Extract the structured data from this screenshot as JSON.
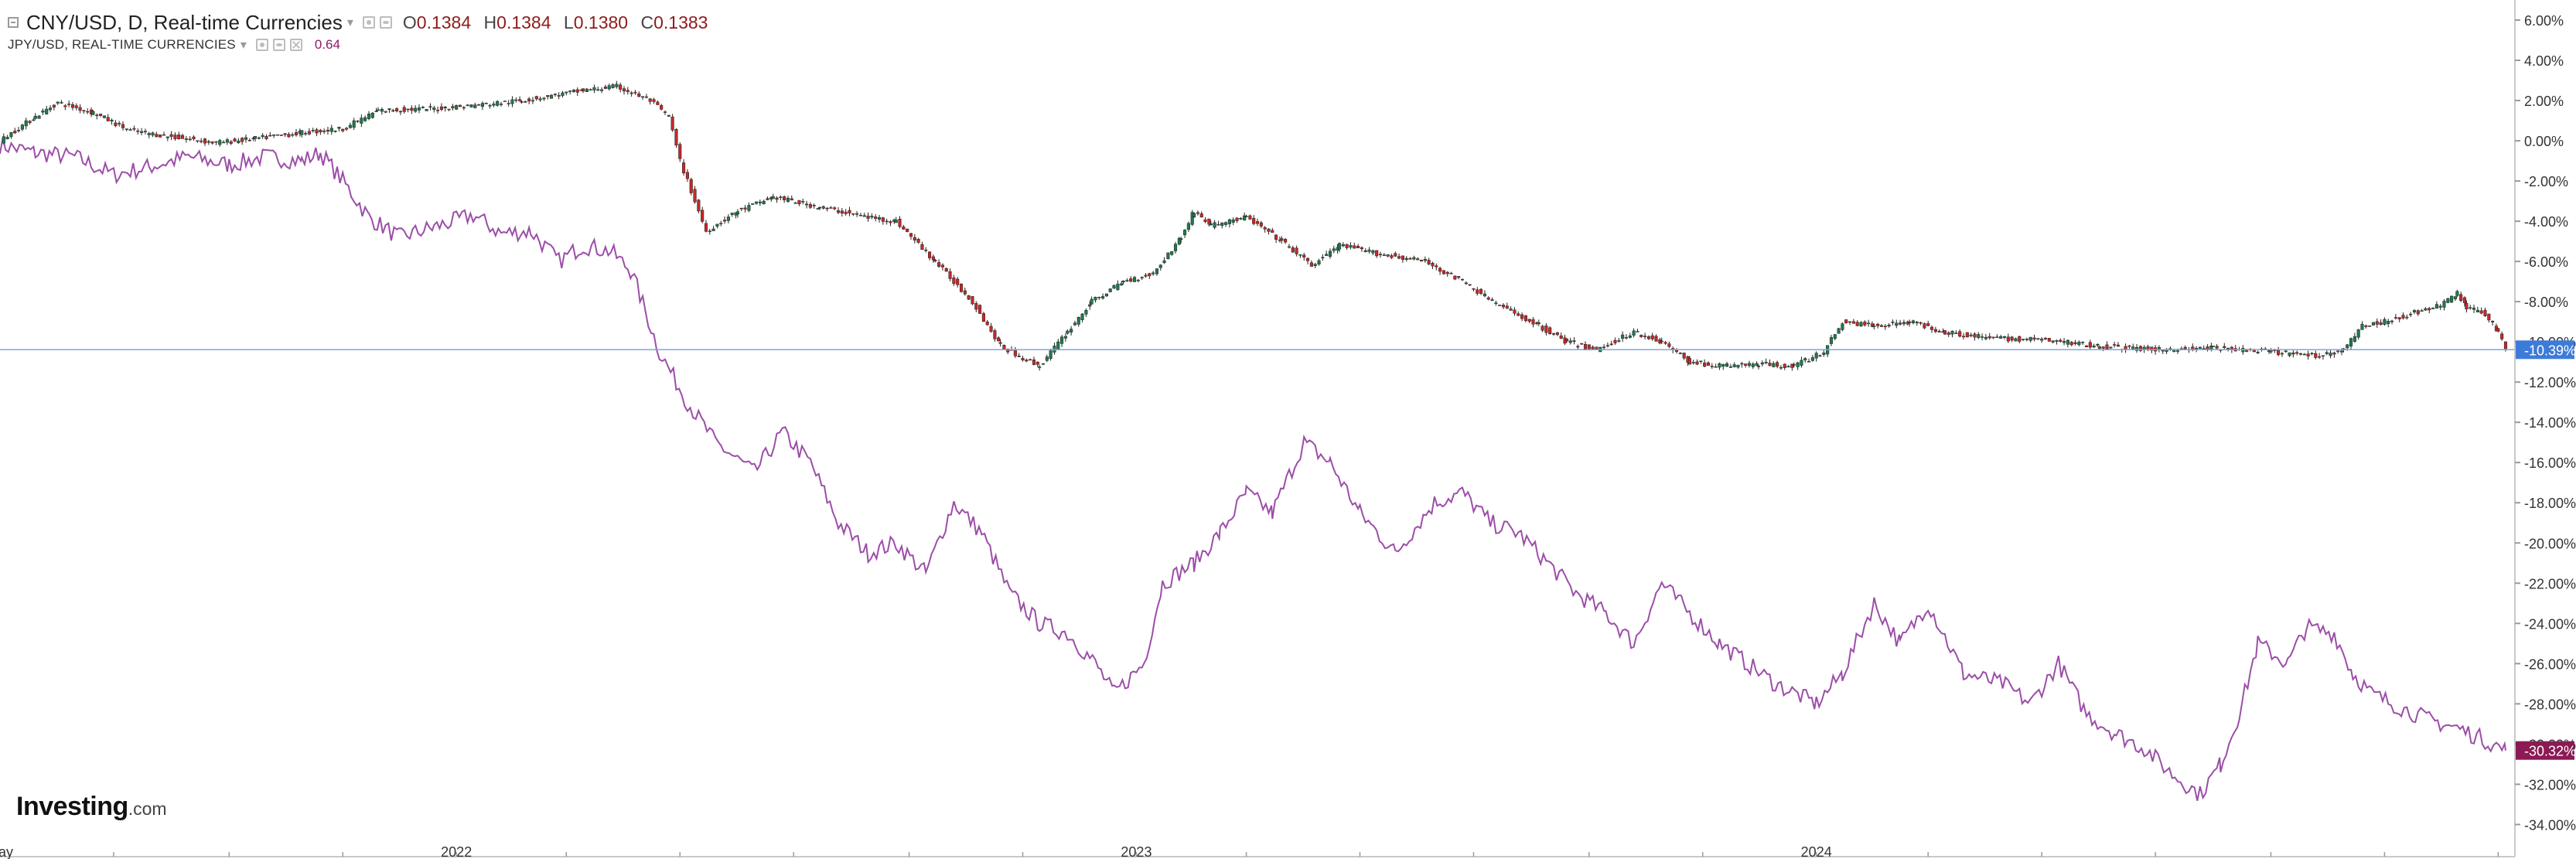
{
  "legend": {
    "main_title": "CNY/USD, D, Real-time Currencies",
    "open_label": "O",
    "open": "0.1384",
    "high_label": "H",
    "high": "0.1384",
    "low_label": "L",
    "low": "0.1380",
    "close_label": "C",
    "close": "0.1383",
    "secondary_title": "JPY/USD, REAL-TIME CURRENCIES",
    "secondary_value": "0.64"
  },
  "logo": {
    "brand": "Investing",
    "suffix": ".com"
  },
  "colors": {
    "up": "#1f7a4d",
    "down": "#c62828",
    "comparison_line": "#9c4ea8",
    "price_line": "#7fa7d6",
    "cny_badge": "#3d7bd8",
    "jpy_badge": "#8c1a54"
  },
  "chart_data": {
    "type": "line",
    "x_tick_labels": [
      "May",
      "2022",
      "2023",
      "2024"
    ],
    "y_tick_labels": [
      "6.00%",
      "4.00%",
      "2.00%",
      "0.00%",
      "-2.00%",
      "-4.00%",
      "-6.00%",
      "-8.00%",
      "-10.00%",
      "-12.00%",
      "-14.00%",
      "-16.00%",
      "-18.00%",
      "-20.00%",
      "-22.00%",
      "-24.00%",
      "-26.00%",
      "-28.00%",
      "-30.00%",
      "-32.00%",
      "-34.00%"
    ],
    "ylim": [
      -35.6,
      7.0
    ],
    "x_range": [
      "2021-05-01",
      "2025-01-05"
    ],
    "series": [
      {
        "name": "CNY/USD",
        "style": "candlestick",
        "last_label": "-10.39%",
        "points": [
          [
            "2021-05-01",
            0.0
          ],
          [
            "2021-05-20",
            1.2
          ],
          [
            "2021-06-01",
            1.9
          ],
          [
            "2021-06-20",
            1.4
          ],
          [
            "2021-07-10",
            0.5
          ],
          [
            "2021-08-01",
            0.2
          ],
          [
            "2021-08-25",
            -0.1
          ],
          [
            "2021-09-15",
            0.1
          ],
          [
            "2021-10-10",
            0.4
          ],
          [
            "2021-11-01",
            0.6
          ],
          [
            "2021-11-20",
            1.5
          ],
          [
            "2021-12-20",
            1.6
          ],
          [
            "2022-01-15",
            1.8
          ],
          [
            "2022-02-05",
            2.0
          ],
          [
            "2022-02-25",
            2.3
          ],
          [
            "2022-03-10",
            2.5
          ],
          [
            "2022-03-28",
            2.7
          ],
          [
            "2022-04-15",
            2.0
          ],
          [
            "2022-04-25",
            1.2
          ],
          [
            "2022-05-01",
            -1.0
          ],
          [
            "2022-05-15",
            -4.5
          ],
          [
            "2022-06-01",
            -3.5
          ],
          [
            "2022-06-20",
            -2.8
          ],
          [
            "2022-07-15",
            -3.3
          ],
          [
            "2022-08-10",
            -3.8
          ],
          [
            "2022-08-25",
            -4.0
          ],
          [
            "2022-09-15",
            -6.0
          ],
          [
            "2022-10-05",
            -8.0
          ],
          [
            "2022-10-20",
            -10.2
          ],
          [
            "2022-11-01",
            -10.8
          ],
          [
            "2022-11-10",
            -11.2
          ],
          [
            "2022-11-25",
            -9.5
          ],
          [
            "2022-12-08",
            -8.0
          ],
          [
            "2022-12-25",
            -7.0
          ],
          [
            "2023-01-10",
            -6.6
          ],
          [
            "2023-01-25",
            -4.8
          ],
          [
            "2023-02-01",
            -3.5
          ],
          [
            "2023-02-10",
            -4.2
          ],
          [
            "2023-03-01",
            -3.8
          ],
          [
            "2023-03-20",
            -5.0
          ],
          [
            "2023-04-05",
            -6.2
          ],
          [
            "2023-04-20",
            -5.2
          ],
          [
            "2023-05-10",
            -5.6
          ],
          [
            "2023-06-05",
            -6.0
          ],
          [
            "2023-06-25",
            -7.0
          ],
          [
            "2023-07-15",
            -8.2
          ],
          [
            "2023-08-05",
            -9.2
          ],
          [
            "2023-08-20",
            -10.0
          ],
          [
            "2023-09-05",
            -10.4
          ],
          [
            "2023-09-25",
            -9.5
          ],
          [
            "2023-10-10",
            -10.0
          ],
          [
            "2023-10-25",
            -11.0
          ],
          [
            "2023-11-10",
            -11.2
          ],
          [
            "2023-12-01",
            -11.1
          ],
          [
            "2023-12-20",
            -11.2
          ],
          [
            "2024-01-05",
            -10.5
          ],
          [
            "2024-01-15",
            -9.0
          ],
          [
            "2024-02-01",
            -9.2
          ],
          [
            "2024-02-20",
            -9.0
          ],
          [
            "2024-03-10",
            -9.5
          ],
          [
            "2024-04-01",
            -9.8
          ],
          [
            "2024-05-01",
            -9.9
          ],
          [
            "2024-06-01",
            -10.2
          ],
          [
            "2024-07-01",
            -10.4
          ],
          [
            "2024-08-01",
            -10.3
          ],
          [
            "2024-09-01",
            -10.5
          ],
          [
            "2024-09-25",
            -10.7
          ],
          [
            "2024-10-10",
            -10.4
          ],
          [
            "2024-10-20",
            -9.2
          ],
          [
            "2024-11-01",
            -9.0
          ],
          [
            "2024-11-15",
            -8.6
          ],
          [
            "2024-12-01",
            -8.2
          ],
          [
            "2024-12-10",
            -7.6
          ],
          [
            "2024-12-15",
            -8.3
          ],
          [
            "2024-12-25",
            -8.6
          ],
          [
            "2025-01-01",
            -9.5
          ],
          [
            "2025-01-05",
            -10.39
          ]
        ]
      },
      {
        "name": "JPY/USD",
        "style": "line",
        "last_label": "-30.32%",
        "points": [
          [
            "2021-05-01",
            -0.2
          ],
          [
            "2021-05-20",
            -0.6
          ],
          [
            "2021-06-10",
            -0.8
          ],
          [
            "2021-07-01",
            -1.7
          ],
          [
            "2021-07-20",
            -1.3
          ],
          [
            "2021-08-10",
            -0.8
          ],
          [
            "2021-09-01",
            -1.2
          ],
          [
            "2021-09-20",
            -0.8
          ],
          [
            "2021-10-10",
            -1.0
          ],
          [
            "2021-10-20",
            -0.6
          ],
          [
            "2021-11-01",
            -2.0
          ],
          [
            "2021-11-15",
            -3.8
          ],
          [
            "2021-12-01",
            -4.8
          ],
          [
            "2021-12-20",
            -4.3
          ],
          [
            "2022-01-10",
            -3.7
          ],
          [
            "2022-01-25",
            -4.6
          ],
          [
            "2022-02-10",
            -4.5
          ],
          [
            "2022-02-25",
            -6.0
          ],
          [
            "2022-03-10",
            -5.2
          ],
          [
            "2022-03-25",
            -5.5
          ],
          [
            "2022-04-05",
            -6.5
          ],
          [
            "2022-04-20",
            -10.5
          ],
          [
            "2022-05-05",
            -13.0
          ],
          [
            "2022-05-20",
            -15.0
          ],
          [
            "2022-06-10",
            -16.5
          ],
          [
            "2022-06-25",
            -14.5
          ],
          [
            "2022-07-10",
            -16.0
          ],
          [
            "2022-07-25",
            -19.0
          ],
          [
            "2022-08-10",
            -20.5
          ],
          [
            "2022-08-25",
            -20.0
          ],
          [
            "2022-09-10",
            -21.5
          ],
          [
            "2022-09-25",
            -18.0
          ],
          [
            "2022-10-10",
            -19.5
          ],
          [
            "2022-10-25",
            -22.5
          ],
          [
            "2022-11-10",
            -24.0
          ],
          [
            "2022-11-25",
            -24.5
          ],
          [
            "2022-12-10",
            -26.0
          ],
          [
            "2022-12-20",
            -27.5
          ],
          [
            "2023-01-05",
            -26.0
          ],
          [
            "2023-01-15",
            -22.0
          ],
          [
            "2023-02-01",
            -21.0
          ],
          [
            "2023-02-15",
            -19.5
          ],
          [
            "2023-03-01",
            -17.5
          ],
          [
            "2023-03-15",
            -18.5
          ],
          [
            "2023-04-01",
            -15.0
          ],
          [
            "2023-04-15",
            -16.0
          ],
          [
            "2023-05-01",
            -18.5
          ],
          [
            "2023-05-20",
            -20.5
          ],
          [
            "2023-06-10",
            -18.0
          ],
          [
            "2023-06-25",
            -17.5
          ],
          [
            "2023-07-10",
            -19.0
          ],
          [
            "2023-07-25",
            -19.5
          ],
          [
            "2023-08-10",
            -21.0
          ],
          [
            "2023-08-25",
            -22.5
          ],
          [
            "2023-09-10",
            -23.5
          ],
          [
            "2023-09-25",
            -25.0
          ],
          [
            "2023-10-10",
            -22.0
          ],
          [
            "2023-10-25",
            -23.5
          ],
          [
            "2023-11-10",
            -25.0
          ],
          [
            "2023-11-25",
            -26.0
          ],
          [
            "2023-12-10",
            -27.0
          ],
          [
            "2024-01-01",
            -28.0
          ],
          [
            "2024-01-15",
            -26.5
          ],
          [
            "2024-02-01",
            -23.0
          ],
          [
            "2024-02-15",
            -25.0
          ],
          [
            "2024-03-01",
            -23.0
          ],
          [
            "2024-03-20",
            -26.5
          ],
          [
            "2024-04-10",
            -27.0
          ],
          [
            "2024-04-25",
            -28.0
          ],
          [
            "2024-05-10",
            -26.0
          ],
          [
            "2024-05-25",
            -28.5
          ],
          [
            "2024-06-10",
            -29.5
          ],
          [
            "2024-06-25",
            -30.2
          ],
          [
            "2024-07-10",
            -31.5
          ],
          [
            "2024-07-25",
            -32.5
          ],
          [
            "2024-08-05",
            -31.0
          ],
          [
            "2024-08-15",
            -28.5
          ],
          [
            "2024-08-25",
            -25.0
          ],
          [
            "2024-09-10",
            -26.0
          ],
          [
            "2024-09-20",
            -24.2
          ],
          [
            "2024-10-05",
            -24.5
          ],
          [
            "2024-10-15",
            -26.5
          ],
          [
            "2024-10-25",
            -27.5
          ],
          [
            "2024-11-10",
            -28.2
          ],
          [
            "2024-11-25",
            -28.8
          ],
          [
            "2024-12-10",
            -29.2
          ],
          [
            "2024-12-25",
            -29.8
          ],
          [
            "2025-01-05",
            -30.32
          ]
        ]
      }
    ]
  }
}
